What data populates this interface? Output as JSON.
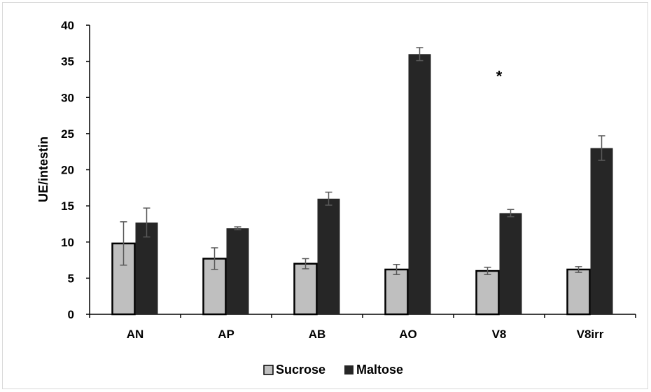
{
  "chart_data": {
    "type": "bar",
    "title": "",
    "xlabel": "",
    "ylabel": "UE/intestin",
    "ylim": [
      0,
      40
    ],
    "yticks": [
      0,
      5,
      10,
      15,
      20,
      25,
      30,
      35,
      40
    ],
    "categories": [
      "AN",
      "AP",
      "AB",
      "AO",
      "V8",
      "V8irr"
    ],
    "series": [
      {
        "name": "Sucrose",
        "color": "#bfbfbf",
        "values": [
          9.8,
          7.7,
          7.0,
          6.2,
          6.0,
          6.2
        ],
        "errors": [
          3.0,
          1.5,
          0.7,
          0.7,
          0.5,
          0.4
        ]
      },
      {
        "name": "Maltose",
        "color": "#262626",
        "values": [
          12.7,
          11.9,
          16.0,
          36.0,
          14.0,
          23.0
        ],
        "errors": [
          2.0,
          0.2,
          0.9,
          0.9,
          0.5,
          1.7
        ]
      }
    ],
    "annotations": [
      {
        "text": "*",
        "category": "V8",
        "y": 33
      }
    ],
    "legend": "bottom",
    "grid": false
  }
}
